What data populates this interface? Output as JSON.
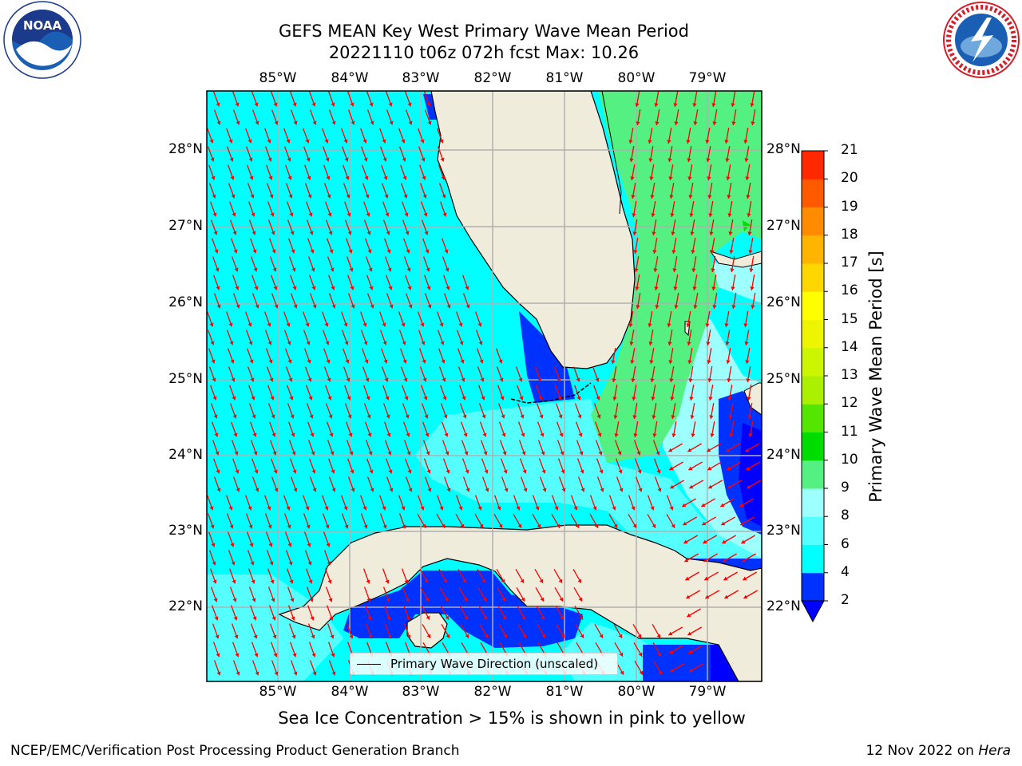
{
  "title": {
    "line1": "GEFS MEAN Key West Primary Wave Mean Period",
    "line2": "20221110 t06z 072h fcst   Max: 10.26"
  },
  "map": {
    "longitude_ticks": [
      "85°W",
      "84°W",
      "83°W",
      "82°W",
      "81°W",
      "80°W",
      "79°W"
    ],
    "latitude_ticks": [
      "28°N",
      "27°N",
      "26°N",
      "25°N",
      "24°N",
      "23°N",
      "22°N"
    ],
    "ocean_color_main": "#00ffff",
    "land_color": "#efecdc",
    "gridline_color": "#b0b0b0",
    "arrow_color": "#ff0000",
    "legend_label": "Primary Wave Direction (unscaled)"
  },
  "colorbar": {
    "label": "Primary Wave Mean Period [s]",
    "ticks": [
      "2",
      "4",
      "6",
      "8",
      "9",
      "10",
      "11",
      "12",
      "13",
      "14",
      "15",
      "16",
      "17",
      "18",
      "19",
      "20",
      "21"
    ],
    "colors": [
      "#0032ff",
      "#00ffff",
      "#55ffff",
      "#9effff",
      "#55f082",
      "#00dc00",
      "#55e600",
      "#aaf000",
      "#ccf500",
      "#eef500",
      "#ffff00",
      "#ffd700",
      "#ffb400",
      "#ff8c00",
      "#ff5a00",
      "#ff2800",
      "#ff0000"
    ],
    "under_color": "#0000ff"
  },
  "ice_note": "Sea Ice Concentration > 15% is shown in pink to yellow",
  "footer": {
    "left": "NCEP/EMC/Verification Post Processing Product Generation Branch",
    "date": "12 Nov 2022 on ",
    "machine": "Hera"
  },
  "logos": {
    "left": "noaa-logo",
    "right": "national-weather-service-logo"
  }
}
